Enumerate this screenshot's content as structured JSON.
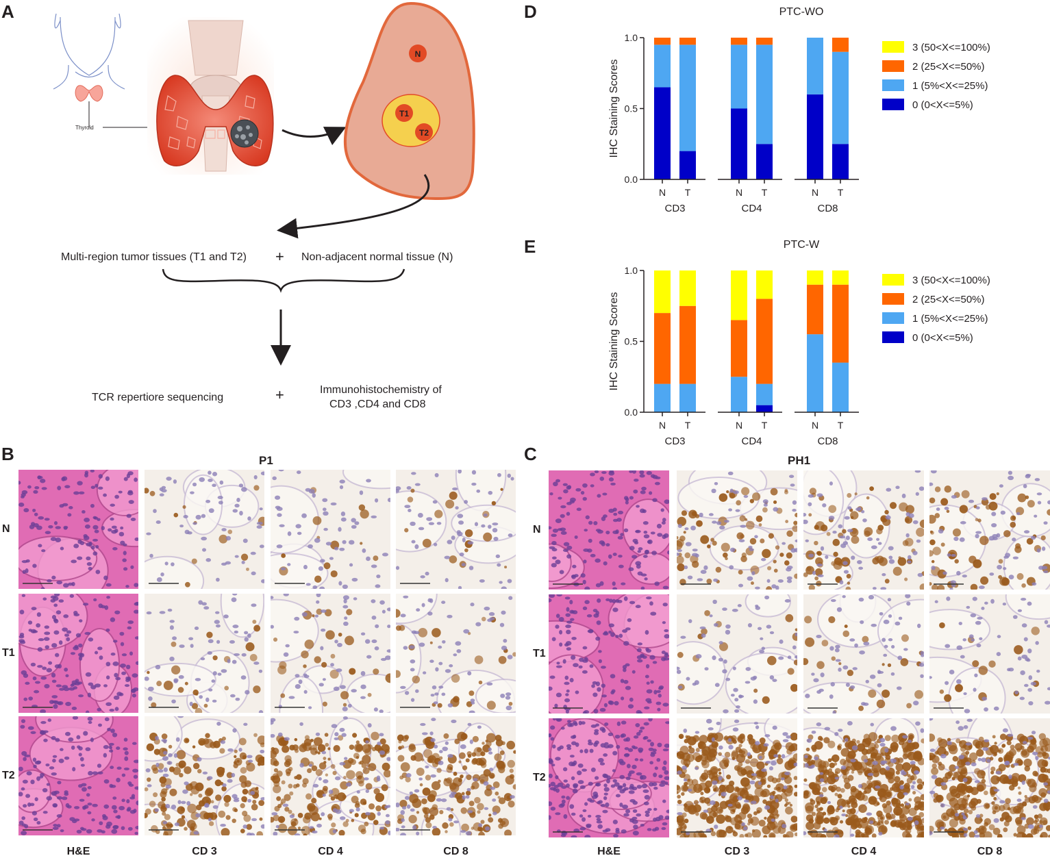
{
  "panels": {
    "a": "A",
    "b": "B",
    "c": "C",
    "d": "D",
    "e": "E"
  },
  "schematic": {
    "thyroid_label": "Thyroid",
    "node_n": "N",
    "node_t1": "T1",
    "node_t2": "T2",
    "flow_left": "Multi-region tumor tissues (T1 and T2)",
    "flow_right": "Non-adjacent normal tissue (N)",
    "plus": "+",
    "flow_bottom_left": "TCR repertiore sequencing",
    "flow_bottom_right_line1": "Immunohistochemistry of",
    "flow_bottom_right_line2": "CD3 ,CD4 and CD8"
  },
  "ihc_grid_b": {
    "title": "P1",
    "rows": [
      "N",
      "T1",
      "T2"
    ],
    "cols": [
      "H&E",
      "CD 3",
      "CD 4",
      "CD 8"
    ]
  },
  "ihc_grid_c": {
    "title": "PH1",
    "rows": [
      "N",
      "T1",
      "T2"
    ],
    "cols": [
      "H&E",
      "CD 3",
      "CD 4",
      "CD 8"
    ]
  },
  "colors": {
    "score3": "#ffff00",
    "score2": "#ff6600",
    "score1": "#4ea7f2",
    "score0": "#0000c8",
    "he_pink": "#e06cb4",
    "ihc_bg": "#f4efe9",
    "ihc_brown": "#9a5a1c",
    "nucleus": "#8c7fb6"
  },
  "chart_data": [
    {
      "type": "bar",
      "stacked": true,
      "title": "PTC-WO",
      "ylabel": "IHC Staining Scores",
      "ylim": [
        0,
        1.0
      ],
      "yticks": [
        "0.0",
        "0.5",
        "1.0"
      ],
      "groups": [
        "CD3",
        "CD4",
        "CD8"
      ],
      "categories": [
        "N",
        "T",
        "N",
        "T",
        "N",
        "T"
      ],
      "series": [
        {
          "name": "0 (0<X<=5%)",
          "values": [
            0.65,
            0.2,
            0.5,
            0.25,
            0.6,
            0.25
          ]
        },
        {
          "name": "1 (5%<X<=25%)",
          "values": [
            0.3,
            0.75,
            0.45,
            0.7,
            0.4,
            0.65
          ]
        },
        {
          "name": "2 (25<X<=50%)",
          "values": [
            0.05,
            0.05,
            0.05,
            0.05,
            0.0,
            0.1
          ]
        },
        {
          "name": "3 (50<X<=100%)",
          "values": [
            0,
            0,
            0,
            0,
            0,
            0
          ]
        }
      ],
      "legend_order": [
        "3 (50<X<=100%)",
        "2 (25<X<=50%)",
        "1 (5%<X<=25%)",
        "0 (0<X<=5%)"
      ],
      "legend_position": "right"
    },
    {
      "type": "bar",
      "stacked": true,
      "title": "PTC-W",
      "ylabel": "IHC Staining Scores",
      "ylim": [
        0,
        1.0
      ],
      "yticks": [
        "0.0",
        "0.5",
        "1.0"
      ],
      "groups": [
        "CD3",
        "CD4",
        "CD8"
      ],
      "categories": [
        "N",
        "T",
        "N",
        "T",
        "N",
        "T"
      ],
      "series": [
        {
          "name": "0 (0<X<=5%)",
          "values": [
            0.0,
            0.0,
            0.0,
            0.05,
            0.0,
            0.0
          ]
        },
        {
          "name": "1 (5%<X<=25%)",
          "values": [
            0.2,
            0.2,
            0.25,
            0.15,
            0.55,
            0.35
          ]
        },
        {
          "name": "2 (25<X<=50%)",
          "values": [
            0.5,
            0.55,
            0.4,
            0.6,
            0.35,
            0.55
          ]
        },
        {
          "name": "3 (50<X<=100%)",
          "values": [
            0.3,
            0.25,
            0.35,
            0.2,
            0.1,
            0.1
          ]
        }
      ],
      "legend_order": [
        "3 (50<X<=100%)",
        "2 (25<X<=50%)",
        "1 (5%<X<=25%)",
        "0 (0<X<=5%)"
      ],
      "legend_position": "right"
    }
  ]
}
